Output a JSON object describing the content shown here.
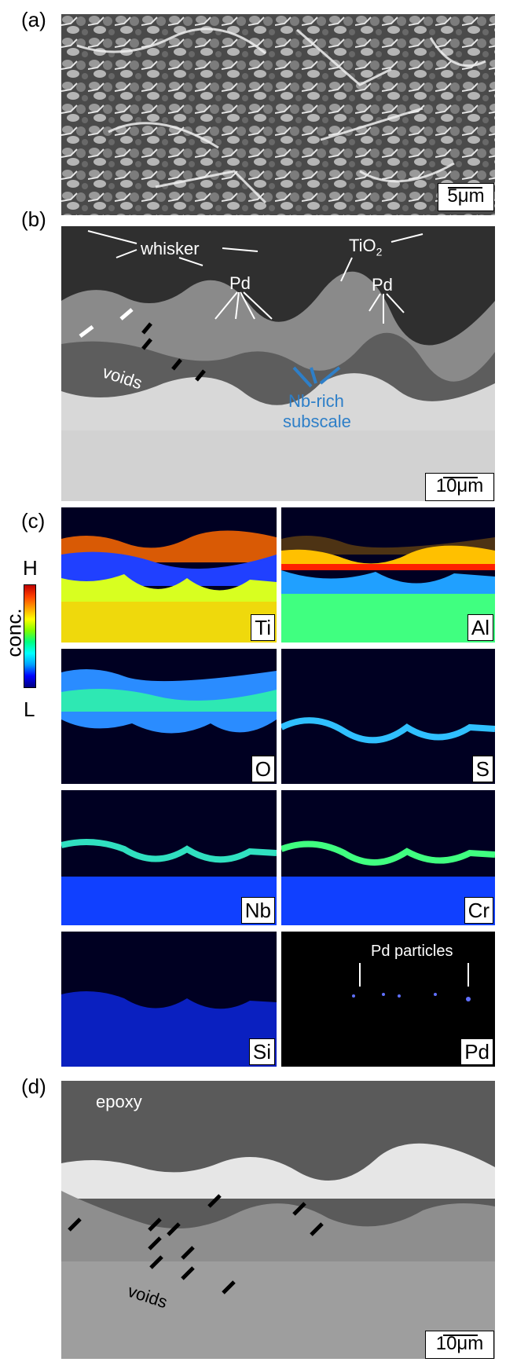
{
  "panels": {
    "a": {
      "label": "(a)",
      "scale": "5μm"
    },
    "b": {
      "label": "(b)",
      "scale": "10μm",
      "whisker": "whisker",
      "tio2": "TiO",
      "tio2_sub": "2",
      "pd1": "Pd",
      "pd2": "Pd",
      "voids": "voids",
      "nbrich1": "Nb-rich",
      "nbrich2": "subscale"
    },
    "c": {
      "label": "(c)",
      "scale_high": "H",
      "scale_low": "L",
      "scale_title": "conc.",
      "maps": [
        "Ti",
        "Al",
        "O",
        "S",
        "Nb",
        "Cr",
        "Si",
        "Pd"
      ],
      "pd_particles": "Pd particles"
    },
    "d": {
      "label": "(d)",
      "scale": "10μm",
      "epoxy": "epoxy",
      "voids": "voids"
    }
  },
  "colors": {
    "nbrich": "#2e7fc8",
    "colormap": [
      "#000080",
      "#0000ff",
      "#00a0ff",
      "#00ffff",
      "#00ff80",
      "#80ff00",
      "#ffff00",
      "#ffa000",
      "#ff4000",
      "#c00000"
    ]
  }
}
